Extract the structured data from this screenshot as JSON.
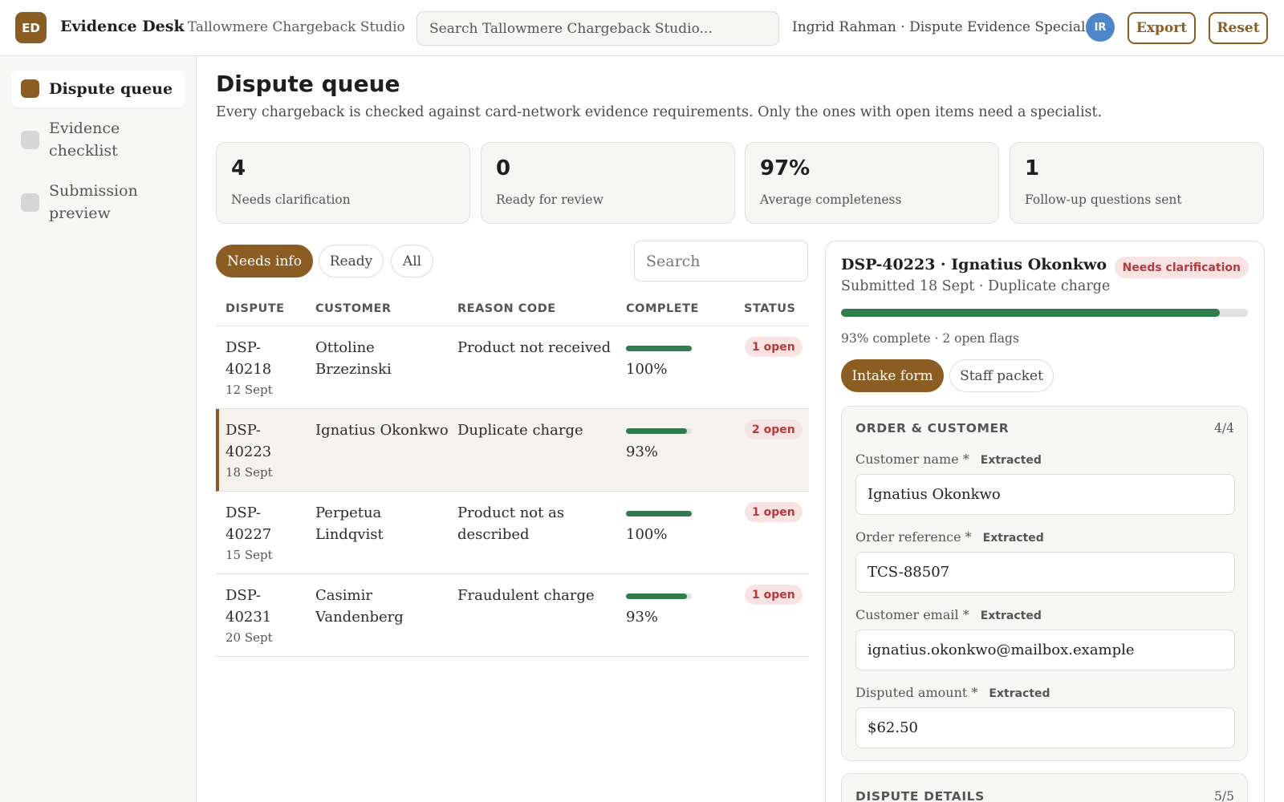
{
  "app": {
    "logo_initials": "ED",
    "title": "Evidence Desk",
    "workspace": "· Tallowmere Chargeback Studio",
    "search_placeholder": "Search Tallowmere Chargeback Studio...",
    "user_label": "Ingrid Rahman · Dispute Evidence Specialist",
    "user_initials": "IR",
    "export_label": "Export",
    "reset_label": "Reset",
    "accent_color": "#8c5d22"
  },
  "sidebar": {
    "items": [
      {
        "label": "Dispute queue",
        "active": true
      },
      {
        "label": "Evidence checklist",
        "active": false
      },
      {
        "label": "Submission preview",
        "active": false
      }
    ]
  },
  "main": {
    "title": "Dispute queue",
    "subtitle": "Every chargeback is checked against card-network evidence requirements. Only the ones with open items need a specialist.",
    "stats": [
      {
        "value": "4",
        "label": "Needs clarification"
      },
      {
        "value": "0",
        "label": "Ready for review"
      },
      {
        "value": "97%",
        "label": "Average completeness"
      },
      {
        "value": "1",
        "label": "Follow-up questions sent"
      }
    ],
    "filters": [
      {
        "label": "Needs info",
        "active": true
      },
      {
        "label": "Ready",
        "active": false
      },
      {
        "label": "All",
        "active": false
      }
    ],
    "list_search_placeholder": "Search"
  },
  "table": {
    "columns": [
      "DISPUTE",
      "CUSTOMER",
      "REASON CODE",
      "COMPLETE",
      "STATUS"
    ],
    "rows": [
      {
        "id_line1": "DSP-",
        "id_line2": "40218",
        "date": "12 Sept",
        "customer": "Ottoline Brzezinski",
        "reason": "Product not received",
        "complete": "100%",
        "complete_fraction": 1.0,
        "status": "1 open",
        "selected": false
      },
      {
        "id_line1": "DSP-",
        "id_line2": "40223",
        "date": "18 Sept",
        "customer": "Ignatius Okonkwo",
        "reason": "Duplicate charge",
        "complete": "93%",
        "complete_fraction": 0.93,
        "status": "2 open",
        "selected": true
      },
      {
        "id_line1": "DSP-",
        "id_line2": "40227",
        "date": "15 Sept",
        "customer": "Perpetua Lindqvist",
        "reason": "Product not as described",
        "complete": "100%",
        "complete_fraction": 1.0,
        "status": "1 open",
        "selected": false
      },
      {
        "id_line1": "DSP-",
        "id_line2": "40231",
        "date": "20 Sept",
        "customer": "Casimir Vandenberg",
        "reason": "Fraudulent charge",
        "complete": "93%",
        "complete_fraction": 0.93,
        "status": "1 open",
        "selected": false
      }
    ]
  },
  "detail": {
    "title": "DSP-40223 · Ignatius Okonkwo",
    "badge": "Needs clarification",
    "subtitle": "Submitted 18 Sept · Duplicate charge",
    "progress_fraction": 0.93,
    "progress_text": "93% complete · 2 open flags",
    "tabs": [
      {
        "label": "Intake form",
        "active": true
      },
      {
        "label": "Staff packet",
        "active": false
      }
    ],
    "sections": [
      {
        "title": "ORDER & CUSTOMER",
        "count": "4/4",
        "fields": [
          {
            "label": "Customer name *",
            "tag": "Extracted",
            "value": "Ignatius Okonkwo"
          },
          {
            "label": "Order reference *",
            "tag": "Extracted",
            "value": "TCS-88507"
          },
          {
            "label": "Customer email *",
            "tag": "Extracted",
            "value": "ignatius.okonkwo@mailbox.example"
          },
          {
            "label": "Disputed amount *",
            "tag": "Extracted",
            "value": "$62.50"
          }
        ]
      },
      {
        "title": "DISPUTE DETAILS",
        "count": "5/5"
      }
    ]
  }
}
